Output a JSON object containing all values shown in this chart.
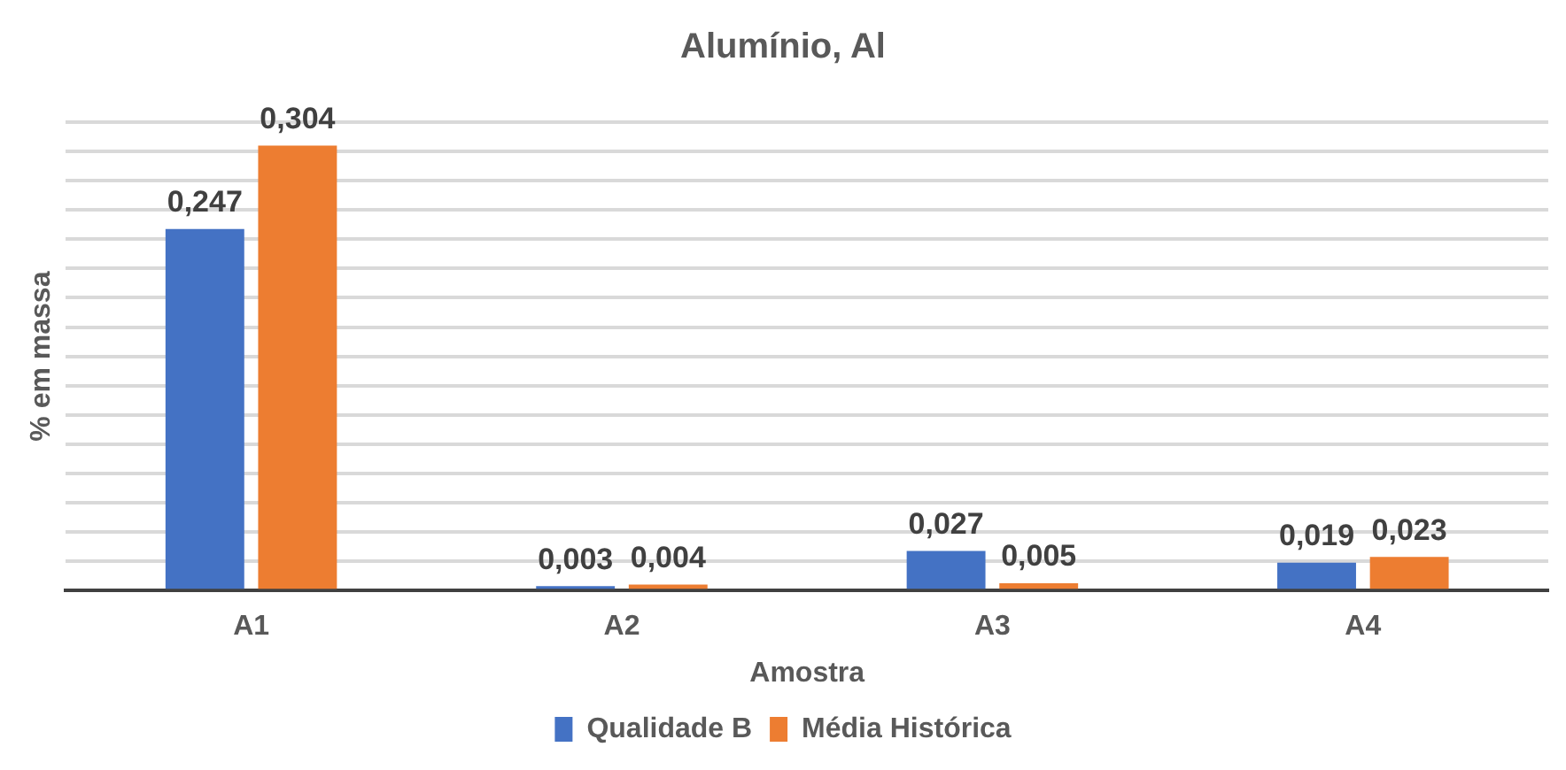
{
  "chart_data": {
    "type": "bar",
    "title": "Alumínio, Al",
    "xlabel": "Amostra",
    "ylabel": "% em massa",
    "categories": [
      "A1",
      "A2",
      "A3",
      "A4"
    ],
    "series": [
      {
        "name": "Qualidade B",
        "color": "#4472c4",
        "values": [
          0.247,
          0.003,
          0.027,
          0.019
        ],
        "value_labels": [
          "0,247",
          "0,003",
          "0,027",
          "0,019"
        ]
      },
      {
        "name": "Média Histórica",
        "color": "#ed7d31",
        "values": [
          0.304,
          0.004,
          0.005,
          0.023
        ],
        "value_labels": [
          "0,304",
          "0,004",
          "0,005",
          "0,023"
        ]
      }
    ],
    "tick_labels": "x",
    "grid": "y",
    "legend": "bottom"
  }
}
